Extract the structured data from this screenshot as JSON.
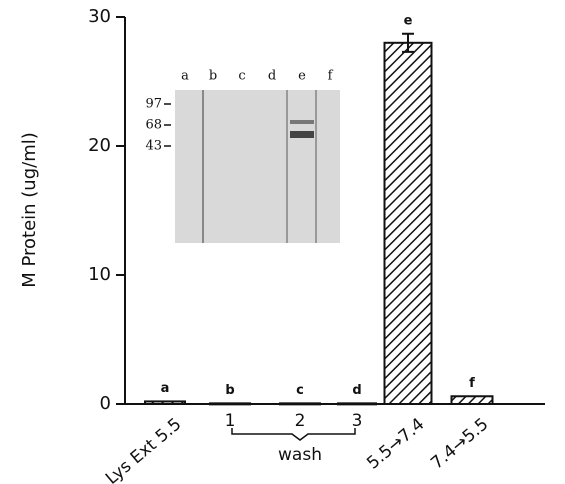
{
  "chart_data": {
    "type": "bar",
    "y_label": "M Protein (ug/ml)",
    "categories": [
      "Lys Ext 5.5",
      "1",
      "2",
      "3",
      "5.5→7.4",
      "7.4→5.5"
    ],
    "group_label": "wash",
    "bar_labels": [
      "a",
      "b",
      "c",
      "d",
      "e",
      "f"
    ],
    "values": [
      0.2,
      0.05,
      0.05,
      0.05,
      28,
      0.6
    ],
    "errors": [
      null,
      null,
      null,
      null,
      0.7,
      null
    ],
    "ylim": [
      0,
      30
    ],
    "yticks": [
      0,
      10,
      20,
      30
    ],
    "color": "#111111",
    "inset": {
      "lane_labels": [
        "a",
        "b",
        "c",
        "d",
        "e",
        "f"
      ],
      "markers": [
        "97",
        "68",
        "43"
      ]
    }
  }
}
